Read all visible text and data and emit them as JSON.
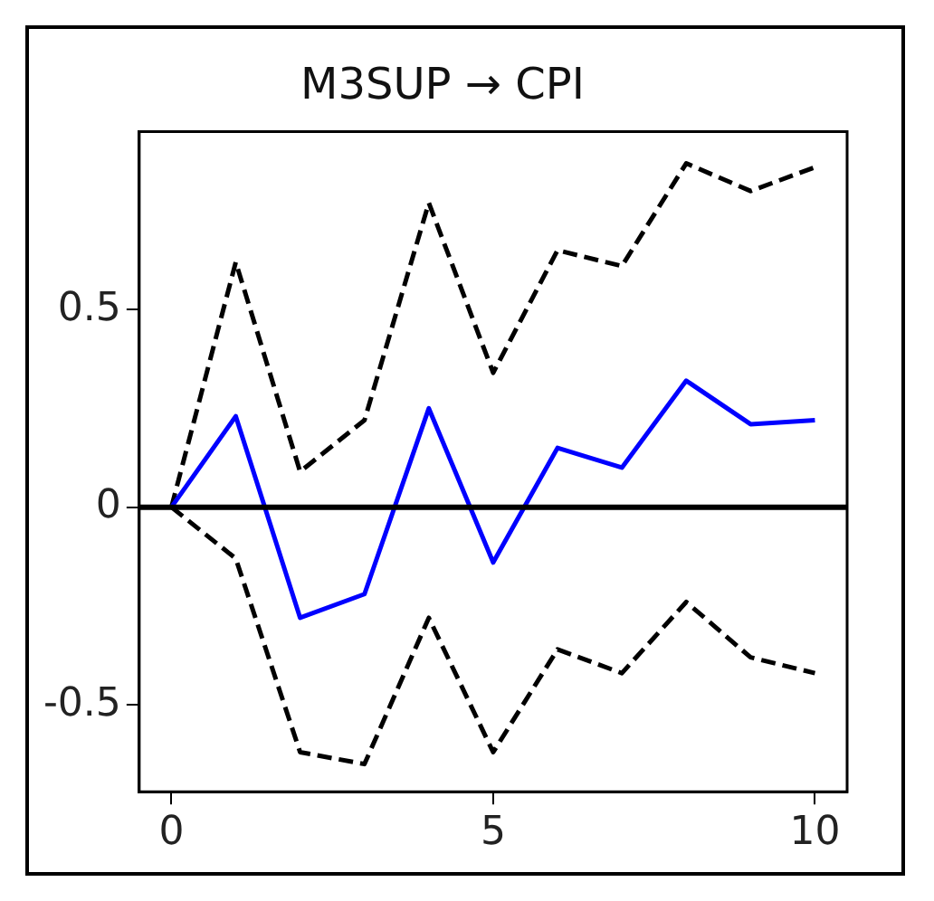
{
  "chart_data": {
    "type": "line",
    "title": "M3SUP → CPI",
    "x": [
      0,
      1,
      2,
      3,
      4,
      5,
      6,
      7,
      8,
      9,
      10
    ],
    "series": [
      {
        "color": "#0000ff",
        "line_style": "solid",
        "values": [
          0,
          0.23,
          -0.28,
          -0.22,
          0.25,
          -0.14,
          0.15,
          0.1,
          0.32,
          0.21,
          0.22
        ]
      },
      {
        "color": "#000000",
        "line_style": "dashed",
        "values": [
          0,
          0.62,
          0.09,
          0.22,
          0.77,
          0.34,
          0.65,
          0.61,
          0.87,
          0.8,
          0.86
        ]
      },
      {
        "color": "#000000",
        "line_style": "dashed",
        "values": [
          0,
          -0.13,
          -0.62,
          -0.65,
          -0.28,
          -0.62,
          -0.36,
          -0.42,
          -0.24,
          -0.38,
          -0.42
        ]
      }
    ],
    "xlim": [
      -0.5,
      10.5
    ],
    "xticks": [
      0,
      5,
      10
    ],
    "ylim": [
      -0.72,
      0.95
    ],
    "yticks": [
      -0.5,
      0,
      0.5
    ],
    "ref_lines": [
      {
        "axis": "y",
        "value": 0,
        "color": "#000000",
        "line_style": "solid"
      }
    ],
    "grid": false,
    "legend": false,
    "marker": "none"
  }
}
